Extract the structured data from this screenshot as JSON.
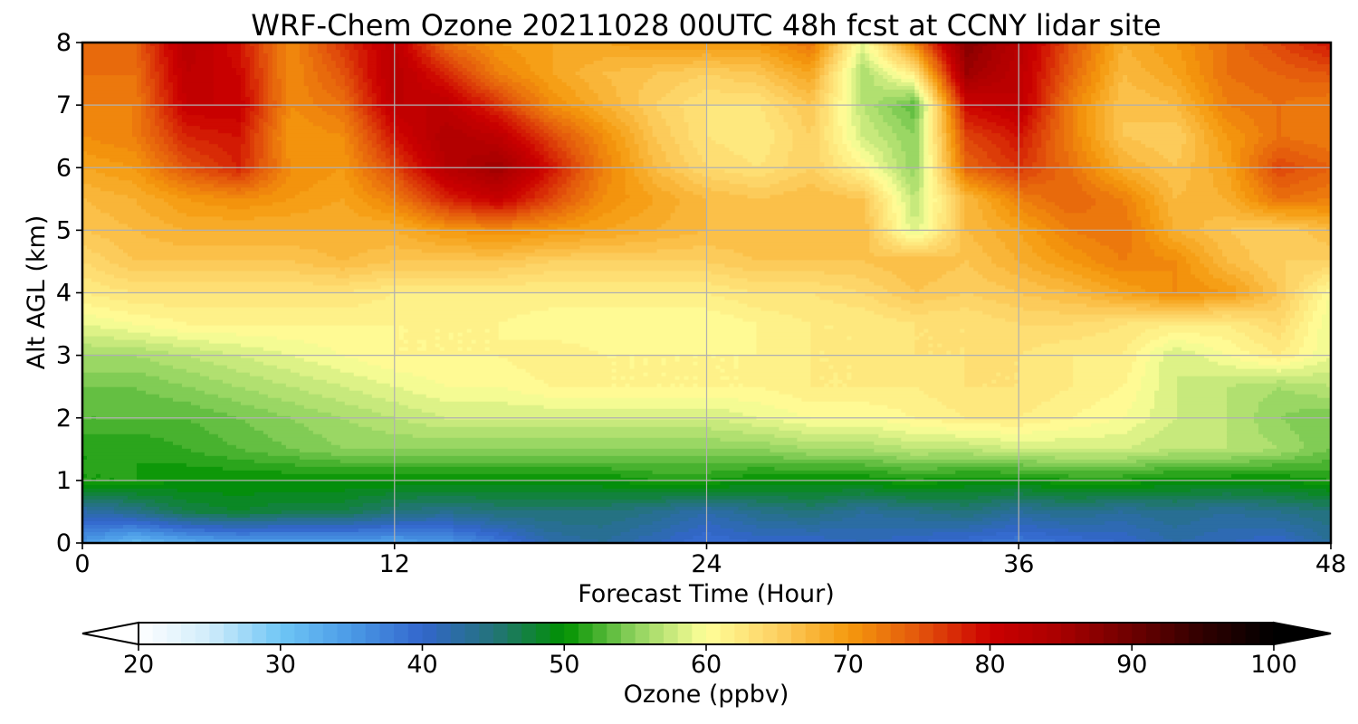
{
  "chart_data": {
    "type": "heatmap",
    "subtype": "filled-contour",
    "title": "WRF-Chem Ozone  20211028 00UTC 48h fcst at CCNY lidar site",
    "xlabel": "Forecast Time (Hour)",
    "ylabel": "Alt AGL (km)",
    "xlim": [
      0,
      48
    ],
    "ylim": [
      0,
      8
    ],
    "xticks": [
      0,
      12,
      24,
      36,
      48
    ],
    "yticks": [
      0,
      1,
      2,
      3,
      4,
      5,
      6,
      7,
      8
    ],
    "grid": true,
    "colorbar": {
      "label": "Ozone  (ppbv)",
      "min": 20,
      "max": 100,
      "ticks": [
        20,
        30,
        40,
        50,
        60,
        70,
        80,
        90,
        100
      ],
      "extend": "both",
      "orientation": "horizontal",
      "placement": "bottom"
    },
    "colormap": [
      {
        "v": 20,
        "c": "#ffffff"
      },
      {
        "v": 25,
        "c": "#d0ecfb"
      },
      {
        "v": 30,
        "c": "#6fc6f5"
      },
      {
        "v": 35,
        "c": "#4a9ae6"
      },
      {
        "v": 40,
        "c": "#3366cc"
      },
      {
        "v": 45,
        "c": "#23737a"
      },
      {
        "v": 50,
        "c": "#009100"
      },
      {
        "v": 55,
        "c": "#8fd35e"
      },
      {
        "v": 60,
        "c": "#ffff99"
      },
      {
        "v": 65,
        "c": "#fdd062"
      },
      {
        "v": 70,
        "c": "#f59a0d"
      },
      {
        "v": 75,
        "c": "#e3560c"
      },
      {
        "v": 80,
        "c": "#cc0000"
      },
      {
        "v": 85,
        "c": "#a80000"
      },
      {
        "v": 90,
        "c": "#6d0000"
      },
      {
        "v": 95,
        "c": "#300000"
      },
      {
        "v": 100,
        "c": "#000000"
      }
    ],
    "x": [
      0,
      2,
      4,
      6,
      8,
      10,
      12,
      14,
      16,
      18,
      20,
      22,
      24,
      26,
      28,
      30,
      32,
      34,
      36,
      38,
      40,
      42,
      44,
      46,
      48
    ],
    "y": [
      0,
      0.5,
      1,
      1.5,
      2,
      2.5,
      3,
      3.5,
      4,
      4.5,
      5,
      5.5,
      6,
      6.5,
      7,
      7.5,
      8
    ],
    "z": [
      [
        35,
        31,
        33,
        34,
        34,
        34,
        34,
        35,
        38,
        42,
        43,
        41,
        39,
        40,
        40,
        41,
        40,
        39,
        38,
        39,
        40,
        42,
        41,
        40,
        43
      ],
      [
        42,
        44,
        47,
        48,
        47,
        47,
        45,
        44,
        45,
        45,
        45,
        44,
        42,
        44,
        45,
        43,
        44,
        45,
        43,
        44,
        43,
        44,
        43,
        44,
        45
      ],
      [
        51,
        51,
        50,
        50,
        50,
        50,
        50,
        50,
        50,
        50,
        50,
        51,
        51,
        50,
        50,
        50,
        51,
        50,
        50,
        51,
        51,
        50,
        50,
        50,
        51
      ],
      [
        51,
        51,
        52,
        53,
        54,
        55,
        55,
        55,
        55,
        55,
        55,
        55,
        55,
        55,
        56,
        56,
        57,
        57,
        58,
        58,
        58,
        57,
        57,
        56,
        54
      ],
      [
        53,
        53,
        53,
        54,
        55,
        56,
        57,
        58,
        58,
        58,
        58,
        58,
        58,
        59,
        60,
        60,
        61,
        62,
        62,
        61,
        60,
        58,
        57,
        55,
        54
      ],
      [
        54,
        54,
        55,
        56,
        57,
        58,
        59,
        60,
        60,
        61,
        61,
        61,
        61,
        61,
        62,
        62,
        62,
        63,
        63,
        62,
        61,
        58,
        57,
        56,
        57
      ],
      [
        56,
        56,
        57,
        58,
        59,
        60,
        61,
        61,
        61,
        62,
        61,
        61,
        61,
        61,
        62,
        62,
        63,
        63,
        63,
        62,
        62,
        58,
        60,
        62,
        59
      ],
      [
        59,
        60,
        61,
        61,
        61,
        61,
        61,
        61,
        61,
        60,
        60,
        60,
        60,
        61,
        62,
        62,
        63,
        63,
        64,
        64,
        63,
        62,
        62,
        64,
        59
      ],
      [
        62,
        63,
        63,
        63,
        63,
        63,
        62,
        62,
        62,
        62,
        62,
        62,
        62,
        63,
        63,
        64,
        66,
        65,
        66,
        67,
        69,
        71,
        70,
        66,
        60
      ],
      [
        64,
        66,
        66,
        66,
        66,
        67,
        66,
        66,
        66,
        65,
        65,
        65,
        65,
        66,
        66,
        66,
        67,
        66,
        68,
        70,
        72,
        71,
        67,
        65,
        65
      ],
      [
        66,
        67,
        68,
        68,
        68,
        68,
        68,
        70,
        71,
        70,
        69,
        68,
        67,
        67,
        67,
        67,
        58,
        67,
        69,
        72,
        73,
        68,
        66,
        65,
        67
      ],
      [
        67,
        68,
        70,
        71,
        70,
        69,
        72,
        78,
        81,
        76,
        71,
        69,
        67,
        66,
        67,
        66,
        57,
        67,
        72,
        74,
        72,
        67,
        68,
        73,
        72
      ],
      [
        69,
        70,
        75,
        78,
        71,
        70,
        76,
        83,
        86,
        79,
        72,
        67,
        64,
        63,
        65,
        61,
        55,
        74,
        77,
        73,
        68,
        66,
        69,
        76,
        74
      ],
      [
        71,
        72,
        78,
        79,
        70,
        71,
        79,
        84,
        82,
        76,
        71,
        66,
        63,
        62,
        65,
        58,
        55,
        76,
        79,
        72,
        66,
        65,
        70,
        73,
        72
      ],
      [
        72,
        72,
        81,
        81,
        71,
        73,
        82,
        82,
        77,
        71,
        68,
        65,
        63,
        63,
        66,
        57,
        53,
        80,
        82,
        72,
        66,
        67,
        72,
        73,
        72
      ],
      [
        73,
        73,
        82,
        80,
        71,
        75,
        83,
        78,
        72,
        69,
        67,
        66,
        65,
        66,
        69,
        56,
        62,
        86,
        82,
        74,
        67,
        69,
        73,
        74,
        75
      ],
      [
        74,
        74,
        83,
        79,
        71,
        77,
        82,
        73,
        70,
        69,
        69,
        70,
        70,
        70,
        73,
        59,
        72,
        88,
        83,
        75,
        68,
        70,
        73,
        76,
        79
      ]
    ]
  }
}
